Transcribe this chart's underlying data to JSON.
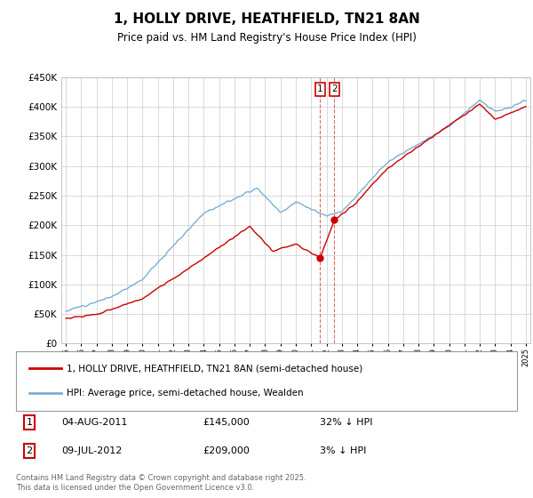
{
  "title": "1, HOLLY DRIVE, HEATHFIELD, TN21 8AN",
  "subtitle": "Price paid vs. HM Land Registry's House Price Index (HPI)",
  "legend_entry1": "1, HOLLY DRIVE, HEATHFIELD, TN21 8AN (semi-detached house)",
  "legend_entry2": "HPI: Average price, semi-detached house, Wealden",
  "transaction1_label": "1",
  "transaction1_date": "04-AUG-2011",
  "transaction1_price": "£145,000",
  "transaction1_hpi": "32% ↓ HPI",
  "transaction2_label": "2",
  "transaction2_date": "09-JUL-2012",
  "transaction2_price": "£209,000",
  "transaction2_hpi": "3% ↓ HPI",
  "footer": "Contains HM Land Registry data © Crown copyright and database right 2025.\nThis data is licensed under the Open Government Licence v3.0.",
  "color_red": "#cc0000",
  "color_blue": "#7bafd4",
  "color_dashed": "#cc0000",
  "ylim_min": 0,
  "ylim_max": 450000,
  "ylabel_ticks": [
    0,
    50000,
    100000,
    150000,
    200000,
    250000,
    300000,
    350000,
    400000,
    450000
  ],
  "x_start_year": 1995,
  "x_end_year": 2025,
  "sale1_year": 2011.59,
  "sale2_year": 2012.52,
  "sale1_price": 145000,
  "sale2_price": 209000,
  "background_color": "#ffffff",
  "grid_color": "#cccccc"
}
